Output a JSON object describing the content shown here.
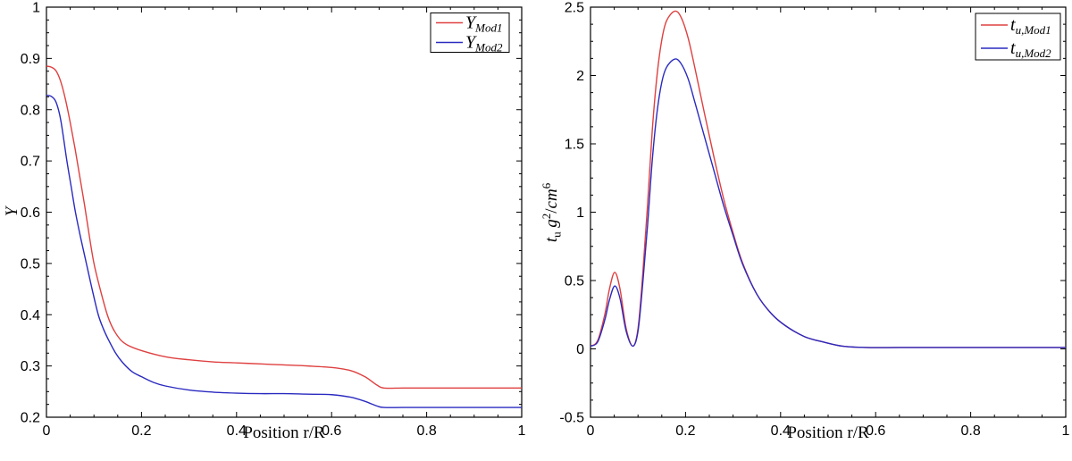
{
  "figure": {
    "background": "#ffffff",
    "axis_color": "#000000"
  },
  "chart_data": [
    {
      "type": "line",
      "title": "",
      "xlabel": "Position r/R",
      "ylabel_parts": [
        {
          "t": "Y",
          "i": 1
        }
      ],
      "xlim": [
        0,
        1
      ],
      "ylim": [
        0.2,
        1
      ],
      "xticks": [
        0,
        0.2,
        0.4,
        0.6,
        0.8,
        1
      ],
      "xtick_labels": [
        "0",
        "0.2",
        "0.4",
        "0.6",
        "0.8",
        "1"
      ],
      "x_minor_step": 0.05,
      "yticks": [
        0.2,
        0.3,
        0.4,
        0.5,
        0.6,
        0.7,
        0.8,
        0.9,
        1
      ],
      "ytick_labels": [
        "0.2",
        "0.3",
        "0.4",
        "0.5",
        "0.6",
        "0.7",
        "0.8",
        "0.9",
        "1"
      ],
      "y_minor_step": 0.025,
      "grid": false,
      "legend_position": "top-right",
      "legend": [
        {
          "main": "Y",
          "sub": "Mod1"
        },
        {
          "main": "Y",
          "sub": "Mod2"
        }
      ],
      "series": [
        {
          "name": "Y_Mod1",
          "color": "#df4040",
          "x": [
            0,
            0.01,
            0.02,
            0.03,
            0.04,
            0.05,
            0.06,
            0.07,
            0.08,
            0.09,
            0.1,
            0.113,
            0.128,
            0.14,
            0.155,
            0.17,
            0.2,
            0.25,
            0.3,
            0.35,
            0.4,
            0.45,
            0.5,
            0.55,
            0.6,
            0.64,
            0.67,
            0.695,
            0.71,
            0.75,
            0.8,
            0.9,
            1.0
          ],
          "y": [
            0.885,
            0.883,
            0.876,
            0.855,
            0.82,
            0.775,
            0.725,
            0.67,
            0.615,
            0.555,
            0.5,
            0.45,
            0.4,
            0.373,
            0.352,
            0.341,
            0.33,
            0.318,
            0.312,
            0.308,
            0.306,
            0.304,
            0.302,
            0.3,
            0.297,
            0.291,
            0.279,
            0.263,
            0.257,
            0.257,
            0.257,
            0.257,
            0.257
          ]
        },
        {
          "name": "Y_Mod2",
          "color": "#2a2ac0",
          "x": [
            0,
            0.01,
            0.02,
            0.03,
            0.043,
            0.052,
            0.061,
            0.072,
            0.084,
            0.096,
            0.109,
            0.12,
            0.13,
            0.145,
            0.16,
            0.18,
            0.2,
            0.225,
            0.25,
            0.3,
            0.35,
            0.4,
            0.45,
            0.5,
            0.55,
            0.6,
            0.64,
            0.67,
            0.695,
            0.71,
            0.75,
            0.8,
            0.9,
            1.0
          ],
          "y": [
            0.828,
            0.826,
            0.815,
            0.78,
            0.7,
            0.65,
            0.6,
            0.55,
            0.5,
            0.45,
            0.4,
            0.372,
            0.352,
            0.326,
            0.307,
            0.289,
            0.279,
            0.268,
            0.261,
            0.253,
            0.249,
            0.247,
            0.246,
            0.246,
            0.245,
            0.244,
            0.239,
            0.231,
            0.222,
            0.219,
            0.219,
            0.219,
            0.219,
            0.219
          ]
        }
      ]
    },
    {
      "type": "line",
      "title": "",
      "xlabel": "Position r/R",
      "ylabel_parts": [
        {
          "t": "t",
          "i": 1
        },
        {
          "t": "u",
          "sub": 1
        },
        {
          "t": " "
        },
        {
          "t": "g",
          "i": 1
        },
        {
          "t": "2",
          "sup": 1
        },
        {
          "t": "/"
        },
        {
          "t": "cm",
          "i": 1
        },
        {
          "t": "6",
          "sup": 1
        }
      ],
      "xlim": [
        0,
        1
      ],
      "ylim": [
        -0.5,
        2.5
      ],
      "xticks": [
        0,
        0.2,
        0.4,
        0.6,
        0.8,
        1
      ],
      "xtick_labels": [
        "0",
        "0.2",
        "0.4",
        "0.6",
        "0.8",
        "1"
      ],
      "x_minor_step": 0.05,
      "yticks": [
        -0.5,
        0,
        0.5,
        1,
        1.5,
        2,
        2.5
      ],
      "ytick_labels": [
        "-0.5",
        "0",
        "0.5",
        "1",
        "1.5",
        "2",
        "2.5"
      ],
      "y_minor_step": 0.125,
      "grid": false,
      "legend_position": "top-right",
      "legend": [
        {
          "main": "t",
          "sub": "u,Mod1"
        },
        {
          "main": "t",
          "sub": "u,Mod2"
        }
      ],
      "series": [
        {
          "name": "t_u_Mod1",
          "color": "#df4040",
          "x": [
            0,
            0.015,
            0.03,
            0.04,
            0.051,
            0.062,
            0.075,
            0.089,
            0.1,
            0.11,
            0.12,
            0.13,
            0.14,
            0.15,
            0.16,
            0.177,
            0.19,
            0.205,
            0.22,
            0.24,
            0.26,
            0.28,
            0.3,
            0.32,
            0.35,
            0.38,
            0.41,
            0.45,
            0.49,
            0.53,
            0.58,
            0.65,
            0.75,
            0.85,
            1.0
          ],
          "y": [
            0.02,
            0.06,
            0.25,
            0.44,
            0.56,
            0.44,
            0.15,
            0.02,
            0.15,
            0.55,
            1.05,
            1.6,
            2.0,
            2.26,
            2.4,
            2.47,
            2.43,
            2.28,
            2.05,
            1.72,
            1.4,
            1.1,
            0.85,
            0.63,
            0.4,
            0.26,
            0.17,
            0.09,
            0.05,
            0.02,
            0.01,
            0.01,
            0.01,
            0.01,
            0.01
          ]
        },
        {
          "name": "t_u_Mod2",
          "color": "#2a2ac0",
          "x": [
            0,
            0.015,
            0.03,
            0.04,
            0.051,
            0.062,
            0.075,
            0.089,
            0.1,
            0.11,
            0.12,
            0.13,
            0.14,
            0.15,
            0.16,
            0.177,
            0.19,
            0.205,
            0.22,
            0.24,
            0.26,
            0.28,
            0.3,
            0.32,
            0.35,
            0.38,
            0.41,
            0.45,
            0.49,
            0.53,
            0.58,
            0.65,
            0.75,
            0.85,
            1.0
          ],
          "y": [
            0.02,
            0.05,
            0.21,
            0.36,
            0.46,
            0.37,
            0.13,
            0.02,
            0.13,
            0.48,
            0.9,
            1.38,
            1.73,
            1.95,
            2.06,
            2.12,
            2.09,
            1.98,
            1.8,
            1.55,
            1.3,
            1.05,
            0.83,
            0.62,
            0.4,
            0.26,
            0.17,
            0.09,
            0.05,
            0.02,
            0.01,
            0.01,
            0.01,
            0.01,
            0.01
          ]
        }
      ]
    }
  ]
}
